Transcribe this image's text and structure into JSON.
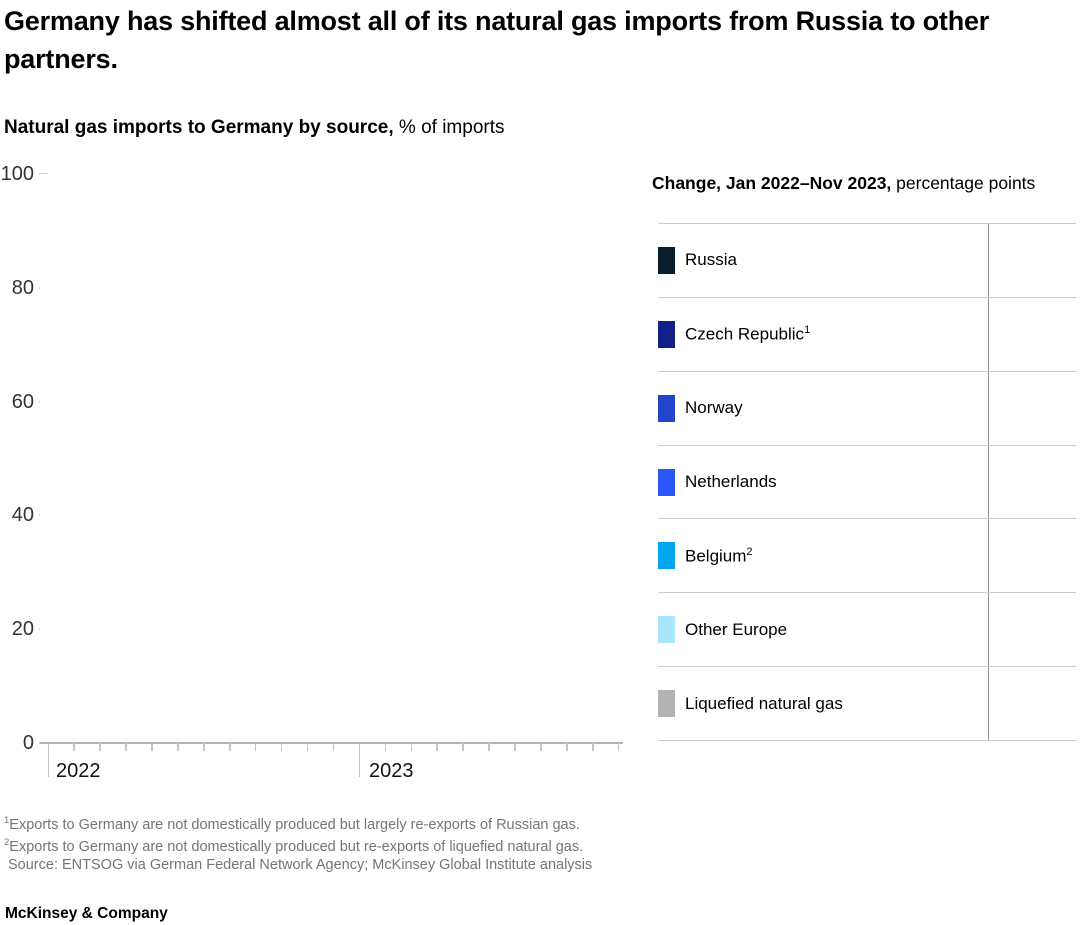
{
  "header": {
    "title": "Germany has shifted almost all of its natural gas imports from Russia to other partners.",
    "subtitle_bold": "Natural gas imports to Germany by source,",
    "subtitle_rest": " % of imports"
  },
  "panel": {
    "header_bold": "Change, Jan 2022–Nov 2023,",
    "header_rest": " percentage points"
  },
  "legend": {
    "rows": [
      {
        "label": "Russia",
        "sup": "",
        "color": "#0a1f2e"
      },
      {
        "label": "Czech Republic",
        "sup": "1",
        "color": "#121f8a"
      },
      {
        "label": "Norway",
        "sup": "",
        "color": "#2444cc"
      },
      {
        "label": "Netherlands",
        "sup": "",
        "color": "#2b57fa"
      },
      {
        "label": "Belgium",
        "sup": "2",
        "color": "#00a6ee"
      },
      {
        "label": "Other Europe",
        "sup": "",
        "color": "#a9e5fb"
      },
      {
        "label": "Liquefied natural gas",
        "sup": "",
        "color": "#b3b3b3"
      }
    ]
  },
  "chart_data": {
    "type": "line",
    "title": "Natural gas imports to Germany by source, % of imports",
    "xlabel": "",
    "ylabel": "% of imports",
    "x_axis": {
      "start": "Jan 2022",
      "end": "Nov 2023",
      "year_labels": [
        "2022",
        "2023"
      ],
      "months_total": 23,
      "year_tick_month_indices": [
        0,
        12
      ],
      "minor_ticks": "monthly"
    },
    "y_axis": {
      "ylim": [
        0,
        100
      ],
      "ticks": [
        100,
        80,
        60,
        40,
        20,
        0
      ]
    },
    "grid": false,
    "legend_position": "right-table",
    "plot_area_empty": true,
    "series": [
      {
        "name": "Russia",
        "color": "#0a1f2e",
        "values": []
      },
      {
        "name": "Czech Republic¹",
        "color": "#121f8a",
        "values": []
      },
      {
        "name": "Norway",
        "color": "#2444cc",
        "values": []
      },
      {
        "name": "Netherlands",
        "color": "#2b57fa",
        "values": []
      },
      {
        "name": "Belgium²",
        "color": "#00a6ee",
        "values": []
      },
      {
        "name": "Other Europe",
        "color": "#a9e5fb",
        "values": []
      },
      {
        "name": "Liquefied natural gas",
        "color": "#b3b3b3",
        "values": []
      }
    ],
    "change_column_values_blank": true
  },
  "footnotes": {
    "lines": [
      {
        "sup": "1",
        "text": "Exports to Germany are not domestically produced but largely re-exports of Russian gas."
      },
      {
        "sup": "2",
        "text": "Exports to Germany are not domestically produced but re-exports of liquefied natural gas."
      },
      {
        "sup": "",
        "text": "Source: ENTSOG via German Federal Network Agency; McKinsey Global Institute analysis"
      }
    ]
  },
  "footer": {
    "brand": "McKinsey & Company"
  }
}
